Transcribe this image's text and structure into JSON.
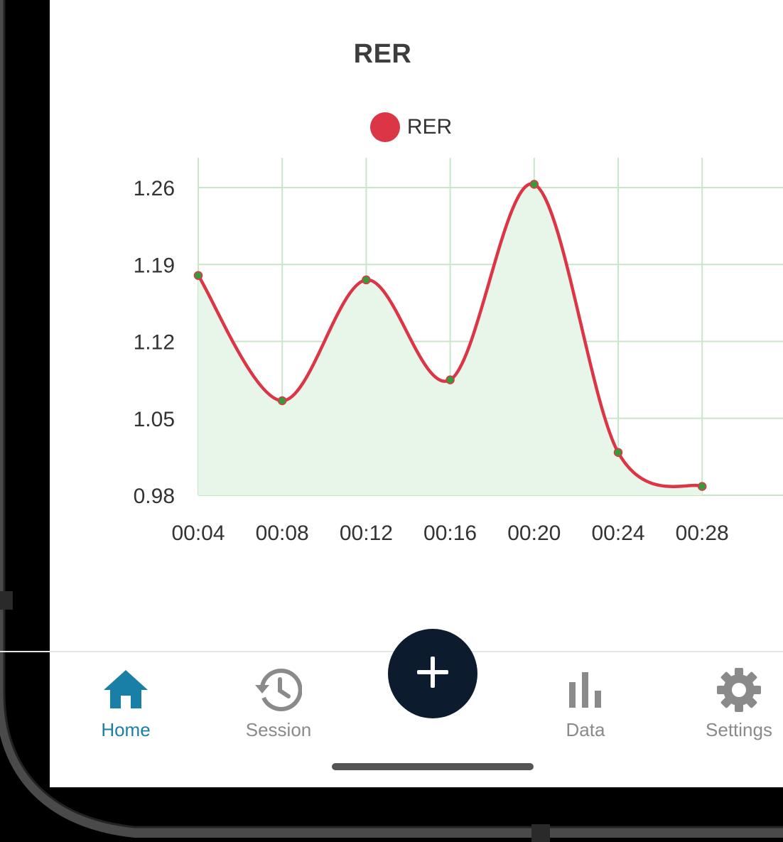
{
  "colors": {
    "series_line": "#dc3545",
    "series_fill": "#e8f5e9",
    "grid": "#c8e6c9",
    "point": "#3a9a3a",
    "active_tab": "#1a7fa6",
    "inactive_tab": "#8a8a8a",
    "fab_background": "#0d1b2e"
  },
  "chart": {
    "title": "RER",
    "legend": "RER"
  },
  "chart_data": {
    "type": "area",
    "title": "RER",
    "x": [
      "00:04",
      "00:08",
      "00:12",
      "00:16",
      "00:20",
      "00:24",
      "00:28"
    ],
    "series": [
      {
        "name": "RER",
        "values": [
          1.18,
          1.066,
          1.176,
          1.085,
          1.263,
          1.019,
          0.988
        ]
      }
    ],
    "yticks": [
      "1.26",
      "1.19",
      "1.12",
      "1.05",
      "0.98"
    ],
    "ylim": [
      0.98,
      1.26
    ],
    "grid": true,
    "legend": "top"
  },
  "tabbar": {
    "home_label": "Home",
    "session_label": "Session",
    "data_label": "Data",
    "settings_label": "Settings",
    "home_icon": "home-icon",
    "session_icon": "history-icon",
    "add_icon": "plus-icon",
    "data_icon": "bar-chart-icon",
    "settings_icon": "gear-icon"
  }
}
